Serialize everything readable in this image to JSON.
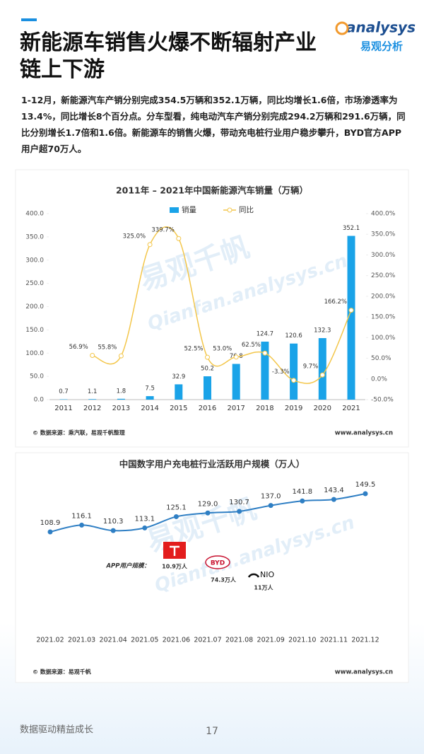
{
  "header": {
    "title": "新能源车销售火爆不断辐射产业链上下游",
    "logo": "analysys",
    "logo_sub": "易观分析"
  },
  "intro": "1-12月，新能源汽车产销分别完成354.5万辆和352.1万辆，同比均增长1.6倍，市场渗透率为13.4%，同比增长8个百分点。分车型看，纯电动汽车产销分别完成294.2万辆和291.6万辆，同比分别增长1.7倍和1.6倍。新能源车的销售火爆，带动充电桩行业用户稳步攀升，BYD官方APP用户超70万人。",
  "chart_data": [
    {
      "type": "bar",
      "title": "2011年 – 2021年中国新能源汽车销量（万辆）",
      "categories": [
        "2011",
        "2012",
        "2013",
        "2014",
        "2015",
        "2016",
        "2017",
        "2018",
        "2019",
        "2020",
        "2021"
      ],
      "series": [
        {
          "name": "销量",
          "color": "#1aa3e8",
          "values": [
            0.7,
            1.1,
            1.8,
            7.5,
            32.9,
            50.2,
            76.8,
            124.7,
            120.6,
            132.3,
            352.1
          ]
        },
        {
          "name": "同比",
          "type": "line",
          "axis": "y2",
          "color": "#f3c64a",
          "values": [
            null,
            56.9,
            55.8,
            325.0,
            339.7,
            52.5,
            53.0,
            62.5,
            -3.3,
            9.7,
            166.2
          ],
          "value_labels": [
            null,
            "56.9%",
            "55.8%",
            "325.0%",
            "339.7%",
            "52.5%",
            "53.0%",
            "62.5%",
            "-3.3%",
            "9.7%",
            "166.2%"
          ]
        }
      ],
      "ylim": [
        0,
        400
      ],
      "yticks": [
        {
          "value": 0,
          "label": "0.0"
        },
        {
          "value": 50,
          "label": "50.0"
        },
        {
          "value": 100,
          "label": "100.0"
        },
        {
          "value": 150,
          "label": "150.0"
        },
        {
          "value": 200,
          "label": "200.0"
        },
        {
          "value": 250,
          "label": "250.0"
        },
        {
          "value": 300,
          "label": "300.0"
        },
        {
          "value": 350,
          "label": "350.0"
        },
        {
          "value": 400,
          "label": "400.0"
        }
      ],
      "y2lim": [
        -50,
        400
      ],
      "y2ticks": [
        {
          "value": -50,
          "label": "-50.0%"
        },
        {
          "value": 0,
          "label": "0.0%"
        },
        {
          "value": 50,
          "label": "50.0%"
        },
        {
          "value": 100,
          "label": "100.0%"
        },
        {
          "value": 150,
          "label": "150.0%"
        },
        {
          "value": 200,
          "label": "200.0%"
        },
        {
          "value": 250,
          "label": "250.0%"
        },
        {
          "value": 300,
          "label": "300.0%"
        },
        {
          "value": 350,
          "label": "350.0%"
        },
        {
          "value": 400,
          "label": "400.0%"
        }
      ],
      "source": "© 数据来源：乘汽联，易观千帆整理",
      "website": "www.analysys.cn",
      "watermark": [
        "易观千帆",
        "Qianfan.analysys.cn"
      ]
    },
    {
      "type": "line",
      "title": "中国数字用户充电桩行业活跃用户规模（万人）",
      "categories": [
        "2021.02",
        "2021.03",
        "2021.04",
        "2021.05",
        "2021.06",
        "2021.07",
        "2021.08",
        "2021.09",
        "2021.10",
        "2021.11",
        "2021.12"
      ],
      "values": [
        108.9,
        116.1,
        110.3,
        113.1,
        125.1,
        129.0,
        130.7,
        137.0,
        141.8,
        143.4,
        149.5
      ],
      "value_labels": [
        "108.9",
        "116.1",
        "110.3",
        "113.1",
        "125.1",
        "129.0",
        "130.7",
        "137.0",
        "141.8",
        "143.4",
        "149.5"
      ],
      "color": "#2f7fc4",
      "app_label": "APP用户规模：",
      "apps": [
        {
          "users": "10.9万人"
        },
        {
          "name": "BYD",
          "users": "74.3万人"
        },
        {
          "name": "NIO",
          "users": "11万人"
        }
      ],
      "source": "© 数据来源：易观千帆",
      "website": "www.analysys.cn",
      "watermark": [
        "易观千帆",
        "Qianfan.analysys.cn"
      ]
    }
  ],
  "footer": {
    "slogan": "数据驱动精益成长",
    "page": "17"
  }
}
